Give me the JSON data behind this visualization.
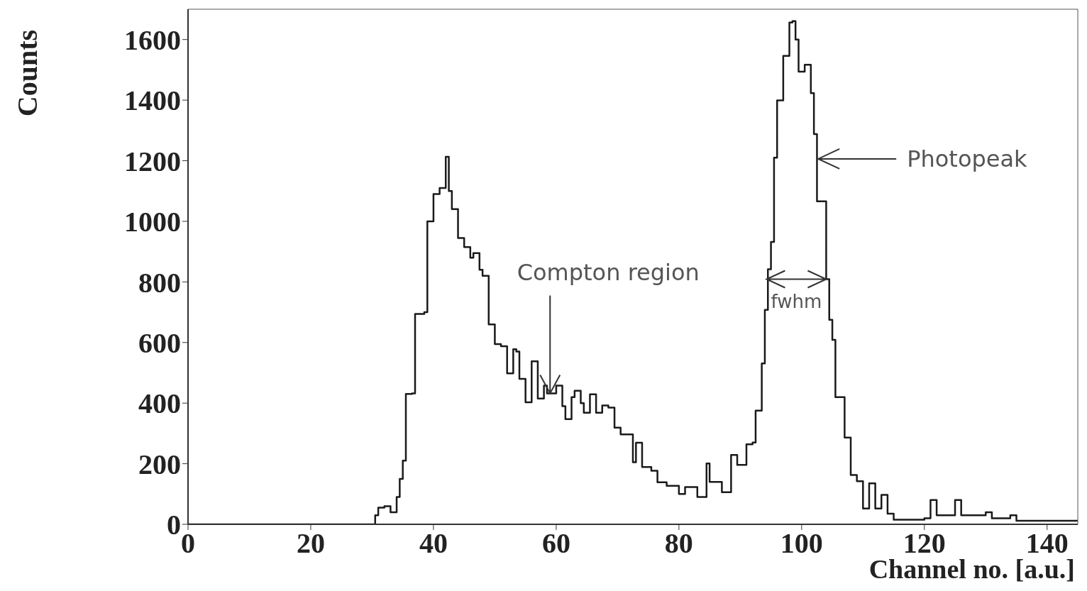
{
  "chart_data": {
    "type": "step",
    "xlabel": "Channel no. [a.u.]",
    "ylabel": "Counts",
    "x": [
      0,
      30,
      30.5,
      31,
      32,
      33,
      34,
      34.5,
      35,
      35.5,
      36.5,
      37,
      38.5,
      39,
      40,
      41,
      42,
      42.5,
      43,
      44,
      45,
      46,
      46.5,
      47.5,
      48,
      49,
      50,
      51,
      52,
      53,
      53.5,
      54,
      55,
      56,
      57,
      58,
      58.5,
      60,
      61,
      61.5,
      62.5,
      63,
      64,
      64.5,
      65.5,
      66.5,
      67.5,
      68.5,
      69.5,
      70.5,
      71.5,
      72.5,
      73,
      74,
      75.5,
      76.5,
      78,
      80,
      81,
      83,
      84.5,
      85,
      87,
      88.5,
      89.5,
      91,
      92,
      92.5,
      93.5,
      94,
      94.5,
      95,
      95.5,
      96,
      97,
      98,
      98.5,
      99,
      99.5,
      100.5,
      101.5,
      102,
      102.5,
      104,
      104.5,
      105,
      105.5,
      107,
      108,
      109,
      110,
      111,
      112,
      113,
      114,
      115,
      120,
      121,
      122,
      125,
      126,
      130,
      131,
      134,
      135,
      145
    ],
    "values": [
      0,
      0,
      30,
      55,
      60,
      40,
      90,
      150,
      210,
      430,
      432,
      694,
      700,
      1000,
      1090,
      1110,
      1213,
      1100,
      1040,
      945,
      915,
      880,
      895,
      840,
      820,
      660,
      595,
      588,
      498,
      578,
      570,
      480,
      403,
      538,
      415,
      458,
      432,
      458,
      390,
      347,
      420,
      441,
      400,
      368,
      429,
      368,
      392,
      385,
      319,
      297,
      297,
      205,
      269,
      189,
      177,
      139,
      127,
      100,
      123,
      90,
      201,
      140,
      106,
      229,
      196,
      264,
      270,
      375,
      531,
      708,
      842,
      932,
      1210,
      1399,
      1546,
      1656,
      1661,
      1600,
      1494,
      1517,
      1423,
      1288,
      1066,
      809,
      675,
      609,
      420,
      286,
      163,
      142,
      52,
      135,
      52,
      97,
      35,
      15,
      20,
      80,
      30,
      80,
      30,
      40,
      20,
      30,
      12,
      12
    ],
    "color": "#1a1a1a",
    "xlim": [
      0,
      145
    ],
    "xticks": [
      0,
      20,
      40,
      60,
      80,
      100,
      120,
      140
    ],
    "ylim": [
      0,
      1700
    ],
    "yticks": [
      0,
      200,
      400,
      600,
      800,
      1000,
      1200,
      1400,
      1600
    ],
    "annotations": [
      {
        "text": "Compton region",
        "x": 59,
        "y": 432
      },
      {
        "text": "Photopeak",
        "x": 102.7,
        "y": 1206
      },
      {
        "text": "fwhm",
        "x": 104,
        "y": 809
      }
    ]
  }
}
